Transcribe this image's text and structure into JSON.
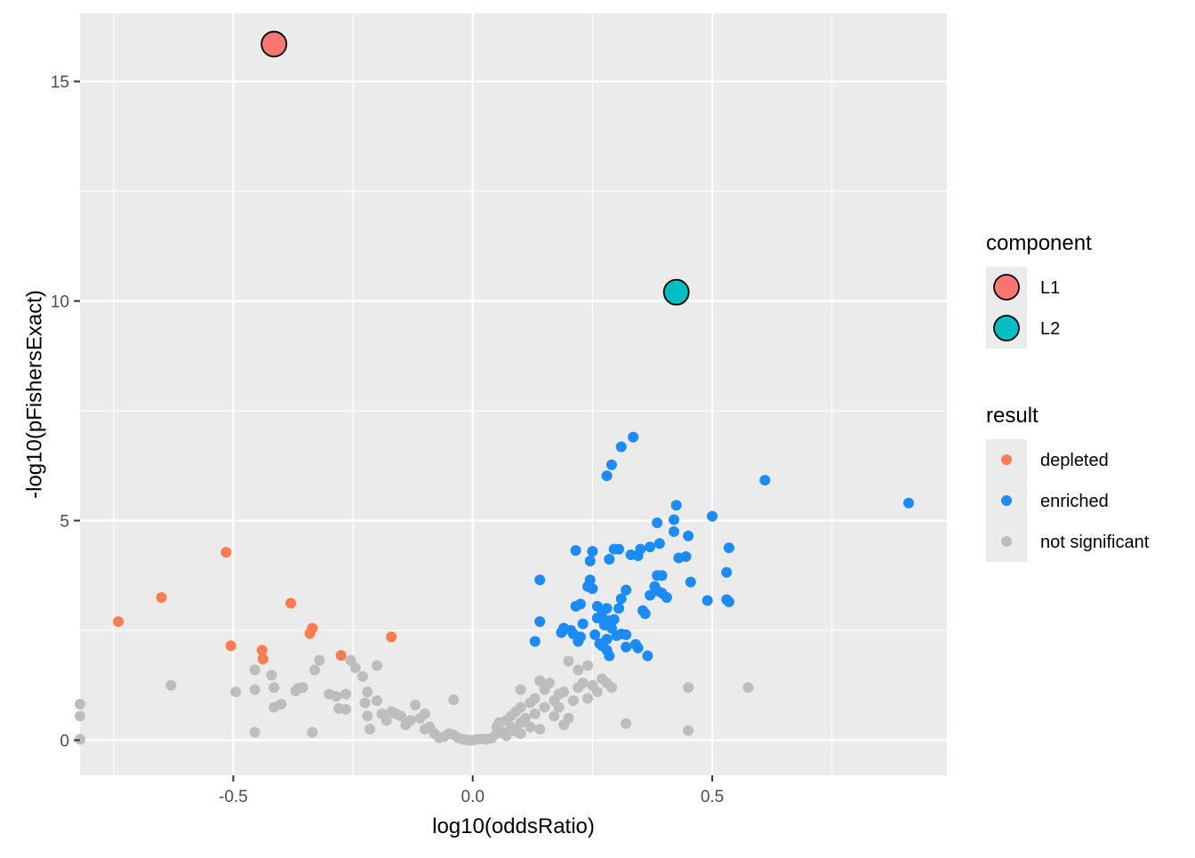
{
  "chart_data": {
    "type": "scatter",
    "title": "",
    "xlabel": "log10(oddsRatio)",
    "ylabel": "-log10(pFishersExact)",
    "xlim": [
      -0.82,
      0.99
    ],
    "ylim": [
      -0.8,
      16.55
    ],
    "x_ticks": [
      {
        "value": -0.5,
        "label": "-0.5"
      },
      {
        "value": 0.0,
        "label": "0.0"
      },
      {
        "value": 0.5,
        "label": "0.5"
      }
    ],
    "y_ticks": [
      {
        "value": 0,
        "label": "0"
      },
      {
        "value": 5,
        "label": "5"
      },
      {
        "value": 10,
        "label": "10"
      },
      {
        "value": 15,
        "label": "15"
      }
    ],
    "grid": true,
    "legend_position": "right",
    "colors": {
      "panel": "#ebebeb",
      "grid": "#ffffff",
      "depleted": "#fc7c4f",
      "enriched": "#1a8bf7",
      "not_significant": "#bdbdbd",
      "L1": "#f8766d",
      "L2": "#00bfc4"
    },
    "legends": {
      "component": {
        "title": "component",
        "entries": [
          {
            "label": "L1",
            "color": "#f8766d"
          },
          {
            "label": "L2",
            "color": "#00bfc4"
          }
        ]
      },
      "result": {
        "title": "result",
        "entries": [
          {
            "label": "depleted",
            "color": "#fc7c4f"
          },
          {
            "label": "enriched",
            "color": "#1a8bf7"
          },
          {
            "label": "not significant",
            "color": "#bdbdbd"
          }
        ]
      }
    },
    "components": [
      {
        "name": "L1",
        "points": [
          [
            -0.415,
            15.85
          ]
        ]
      },
      {
        "name": "L2",
        "points": [
          [
            0.425,
            10.2
          ]
        ]
      }
    ],
    "series": [
      {
        "name": "depleted",
        "points": [
          [
            -0.74,
            2.7
          ],
          [
            -0.65,
            3.25
          ],
          [
            -0.515,
            4.28
          ],
          [
            -0.505,
            2.15
          ],
          [
            -0.44,
            2.05
          ],
          [
            -0.438,
            1.85
          ],
          [
            -0.38,
            3.12
          ],
          [
            -0.335,
            2.55
          ],
          [
            -0.34,
            2.43
          ],
          [
            -0.275,
            1.93
          ],
          [
            -0.17,
            2.35
          ]
        ]
      },
      {
        "name": "enriched",
        "points": [
          [
            0.335,
            6.9
          ],
          [
            0.31,
            6.68
          ],
          [
            0.29,
            6.27
          ],
          [
            0.28,
            6.02
          ],
          [
            0.61,
            5.92
          ],
          [
            0.91,
            5.4
          ],
          [
            0.425,
            5.35
          ],
          [
            0.5,
            5.1
          ],
          [
            0.42,
            5.02
          ],
          [
            0.385,
            4.95
          ],
          [
            0.42,
            4.75
          ],
          [
            0.45,
            4.65
          ],
          [
            0.39,
            4.48
          ],
          [
            0.535,
            4.38
          ],
          [
            0.37,
            4.4
          ],
          [
            0.35,
            4.35
          ],
          [
            0.295,
            4.35
          ],
          [
            0.305,
            4.35
          ],
          [
            0.215,
            4.32
          ],
          [
            0.25,
            4.3
          ],
          [
            0.33,
            4.22
          ],
          [
            0.345,
            4.2
          ],
          [
            0.43,
            4.15
          ],
          [
            0.445,
            4.18
          ],
          [
            0.285,
            4.12
          ],
          [
            0.245,
            4.08
          ],
          [
            0.53,
            3.82
          ],
          [
            0.385,
            3.75
          ],
          [
            0.395,
            3.75
          ],
          [
            0.14,
            3.65
          ],
          [
            0.245,
            3.65
          ],
          [
            0.455,
            3.6
          ],
          [
            0.24,
            3.5
          ],
          [
            0.25,
            3.45
          ],
          [
            0.38,
            3.5
          ],
          [
            0.385,
            3.4
          ],
          [
            0.32,
            3.42
          ],
          [
            0.395,
            3.35
          ],
          [
            0.405,
            3.25
          ],
          [
            0.37,
            3.3
          ],
          [
            0.31,
            3.22
          ],
          [
            0.53,
            3.2
          ],
          [
            0.535,
            3.15
          ],
          [
            0.49,
            3.18
          ],
          [
            0.225,
            3.1
          ],
          [
            0.215,
            3.05
          ],
          [
            0.26,
            3.05
          ],
          [
            0.27,
            2.95
          ],
          [
            0.28,
            3.0
          ],
          [
            0.305,
            3.0
          ],
          [
            0.355,
            2.95
          ],
          [
            0.36,
            2.88
          ],
          [
            0.26,
            2.78
          ],
          [
            0.27,
            2.8
          ],
          [
            0.285,
            2.72
          ],
          [
            0.295,
            2.75
          ],
          [
            0.14,
            2.7
          ],
          [
            0.23,
            2.65
          ],
          [
            0.275,
            2.62
          ],
          [
            0.29,
            2.55
          ],
          [
            0.19,
            2.55
          ],
          [
            0.185,
            2.45
          ],
          [
            0.205,
            2.5
          ],
          [
            0.21,
            2.42
          ],
          [
            0.225,
            2.35
          ],
          [
            0.255,
            2.4
          ],
          [
            0.3,
            2.38
          ],
          [
            0.31,
            2.42
          ],
          [
            0.32,
            2.4
          ],
          [
            0.28,
            2.3
          ],
          [
            0.22,
            2.25
          ],
          [
            0.13,
            2.25
          ],
          [
            0.265,
            2.2
          ],
          [
            0.27,
            2.15
          ],
          [
            0.32,
            2.12
          ],
          [
            0.34,
            2.18
          ],
          [
            0.345,
            2.1
          ],
          [
            0.28,
            2.05
          ],
          [
            0.285,
            1.92
          ],
          [
            0.365,
            1.92
          ]
        ]
      },
      {
        "name": "not significant",
        "points": [
          [
            -0.82,
            0.82
          ],
          [
            -0.82,
            0.55
          ],
          [
            -0.82,
            0.02
          ],
          [
            -0.63,
            1.25
          ],
          [
            -0.495,
            1.1
          ],
          [
            -0.455,
            1.6
          ],
          [
            -0.455,
            1.15
          ],
          [
            -0.455,
            0.18
          ],
          [
            -0.42,
            1.48
          ],
          [
            -0.415,
            1.2
          ],
          [
            -0.415,
            0.75
          ],
          [
            -0.4,
            0.82
          ],
          [
            -0.37,
            1.12
          ],
          [
            -0.365,
            1.18
          ],
          [
            -0.355,
            1.2
          ],
          [
            -0.335,
            0.18
          ],
          [
            -0.33,
            1.6
          ],
          [
            -0.32,
            1.82
          ],
          [
            -0.3,
            1.05
          ],
          [
            -0.285,
            1.0
          ],
          [
            -0.28,
            0.72
          ],
          [
            -0.265,
            0.7
          ],
          [
            -0.265,
            1.05
          ],
          [
            -0.255,
            1.82
          ],
          [
            -0.245,
            1.65
          ],
          [
            -0.23,
            1.45
          ],
          [
            -0.22,
            1.1
          ],
          [
            -0.225,
            0.85
          ],
          [
            -0.22,
            0.55
          ],
          [
            -0.215,
            0.25
          ],
          [
            -0.2,
            1.7
          ],
          [
            -0.2,
            0.9
          ],
          [
            -0.19,
            0.6
          ],
          [
            -0.18,
            0.45
          ],
          [
            -0.17,
            0.65
          ],
          [
            -0.16,
            0.6
          ],
          [
            -0.15,
            0.55
          ],
          [
            -0.14,
            0.35
          ],
          [
            -0.13,
            0.45
          ],
          [
            -0.12,
            0.8
          ],
          [
            -0.11,
            0.5
          ],
          [
            -0.1,
            0.6
          ],
          [
            -0.1,
            0.25
          ],
          [
            -0.09,
            0.3
          ],
          [
            -0.08,
            0.15
          ],
          [
            -0.07,
            0.05
          ],
          [
            -0.06,
            0.08
          ],
          [
            -0.05,
            0.15
          ],
          [
            -0.04,
            0.92
          ],
          [
            -0.04,
            0.12
          ],
          [
            -0.03,
            0.05
          ],
          [
            -0.02,
            0.02
          ],
          [
            -0.01,
            0.0
          ],
          [
            0.0,
            0.0
          ],
          [
            0.01,
            0.02
          ],
          [
            0.02,
            0.03
          ],
          [
            0.03,
            0.02
          ],
          [
            0.04,
            0.05
          ],
          [
            0.05,
            0.15
          ],
          [
            0.05,
            0.3
          ],
          [
            0.06,
            0.2
          ],
          [
            0.07,
            0.45
          ],
          [
            0.07,
            0.1
          ],
          [
            0.08,
            0.55
          ],
          [
            0.08,
            0.3
          ],
          [
            0.09,
            0.65
          ],
          [
            0.09,
            0.2
          ],
          [
            0.1,
            0.75
          ],
          [
            0.1,
            0.4
          ],
          [
            0.1,
            0.15
          ],
          [
            0.11,
            0.5
          ],
          [
            0.12,
            0.85
          ],
          [
            0.12,
            0.3
          ],
          [
            0.13,
            0.95
          ],
          [
            0.13,
            0.6
          ],
          [
            0.14,
            0.25
          ],
          [
            0.14,
            1.35
          ],
          [
            0.15,
            1.15
          ],
          [
            0.15,
            0.75
          ],
          [
            0.16,
            1.3
          ],
          [
            0.17,
            0.9
          ],
          [
            0.17,
            0.55
          ],
          [
            0.18,
            1.05
          ],
          [
            0.18,
            0.75
          ],
          [
            0.19,
            1.1
          ],
          [
            0.19,
            0.35
          ],
          [
            0.2,
            1.8
          ],
          [
            0.2,
            0.5
          ],
          [
            0.21,
            0.9
          ],
          [
            0.22,
            1.6
          ],
          [
            0.22,
            1.2
          ],
          [
            0.23,
            1.3
          ],
          [
            0.24,
            1.7
          ],
          [
            0.24,
            0.95
          ],
          [
            0.25,
            1.25
          ],
          [
            0.26,
            1.1
          ],
          [
            0.27,
            1.4
          ],
          [
            0.28,
            1.3
          ],
          [
            0.29,
            1.2
          ],
          [
            0.1,
            1.15
          ],
          [
            0.055,
            0.4
          ],
          [
            0.32,
            0.38
          ],
          [
            0.45,
            1.2
          ],
          [
            0.45,
            0.22
          ],
          [
            0.575,
            1.2
          ]
        ]
      }
    ]
  }
}
